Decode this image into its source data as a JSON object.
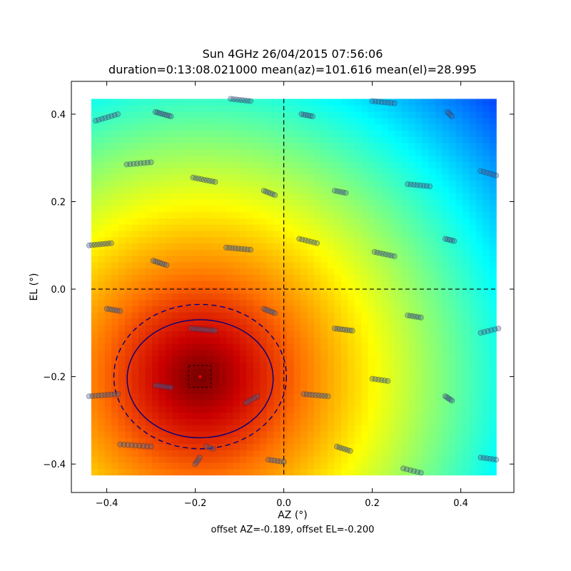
{
  "chart_data": {
    "type": "heatmap",
    "title": "Sun 4GHz 26/04/2015 07:56:06",
    "subtitle": "duration=0:13:08.021000 mean(az)=101.616 mean(el)=28.995",
    "xlabel": "AZ (°)",
    "ylabel": "EL (°)",
    "footer": "offset AZ=-0.189, offset EL=-0.200",
    "xlim": [
      -0.48,
      0.52
    ],
    "ylim": [
      -0.465,
      0.475
    ],
    "x_ticks": [
      -0.4,
      -0.2,
      0.0,
      0.2,
      0.4
    ],
    "y_ticks": [
      -0.4,
      -0.2,
      0.0,
      0.2,
      0.4
    ],
    "x_tick_labels": [
      "−0.4",
      "−0.2",
      "0.0",
      "0.2",
      "0.4"
    ],
    "y_tick_labels": [
      "−0.4",
      "−0.2",
      "0.0",
      "0.2",
      "0.4"
    ],
    "heatmap_extent": {
      "az": [
        -0.435,
        0.48
      ],
      "el": [
        -0.425,
        0.435
      ]
    },
    "colormap": "jet",
    "peak": {
      "az": -0.189,
      "el": -0.2
    },
    "beam_radius": 0.42,
    "crosshair": {
      "az": 0.0,
      "el": 0.0
    },
    "contour_solid": {
      "center": [
        -0.189,
        -0.205
      ],
      "radii": [
        0.165,
        0.135
      ]
    },
    "contour_dashed": {
      "center": [
        -0.189,
        -0.2
      ],
      "radii": [
        0.195,
        0.165
      ]
    },
    "fit_box": {
      "az": [
        -0.215,
        -0.165
      ],
      "el": [
        -0.225,
        -0.175
      ]
    },
    "grid": false,
    "samples": [
      {
        "az0": -0.425,
        "el0": 0.385,
        "az1": -0.375,
        "el1": 0.4,
        "n": 8
      },
      {
        "az0": -0.29,
        "el0": 0.405,
        "az1": -0.255,
        "el1": 0.395,
        "n": 9
      },
      {
        "az0": -0.12,
        "el0": 0.435,
        "az1": -0.075,
        "el1": 0.43,
        "n": 8
      },
      {
        "az0": 0.04,
        "el0": 0.4,
        "az1": 0.065,
        "el1": 0.395,
        "n": 6
      },
      {
        "az0": 0.2,
        "el0": 0.43,
        "az1": 0.25,
        "el1": 0.425,
        "n": 8
      },
      {
        "az0": 0.37,
        "el0": 0.405,
        "az1": 0.38,
        "el1": 0.395,
        "n": 4
      },
      {
        "az0": -0.355,
        "el0": 0.285,
        "az1": -0.3,
        "el1": 0.29,
        "n": 8
      },
      {
        "az0": -0.205,
        "el0": 0.255,
        "az1": -0.155,
        "el1": 0.245,
        "n": 9
      },
      {
        "az0": -0.045,
        "el0": 0.225,
        "az1": -0.02,
        "el1": 0.215,
        "n": 6
      },
      {
        "az0": 0.115,
        "el0": 0.225,
        "az1": 0.14,
        "el1": 0.22,
        "n": 5
      },
      {
        "az0": 0.28,
        "el0": 0.24,
        "az1": 0.33,
        "el1": 0.235,
        "n": 8
      },
      {
        "az0": 0.445,
        "el0": 0.27,
        "az1": 0.48,
        "el1": 0.26,
        "n": 6
      },
      {
        "az0": -0.44,
        "el0": 0.1,
        "az1": -0.39,
        "el1": 0.105,
        "n": 9
      },
      {
        "az0": -0.295,
        "el0": 0.065,
        "az1": -0.265,
        "el1": 0.055,
        "n": 7
      },
      {
        "az0": -0.13,
        "el0": 0.095,
        "az1": -0.075,
        "el1": 0.09,
        "n": 9
      },
      {
        "az0": 0.035,
        "el0": 0.115,
        "az1": 0.075,
        "el1": 0.105,
        "n": 7
      },
      {
        "az0": 0.205,
        "el0": 0.085,
        "az1": 0.25,
        "el1": 0.075,
        "n": 8
      },
      {
        "az0": 0.365,
        "el0": 0.115,
        "az1": 0.385,
        "el1": 0.11,
        "n": 5
      },
      {
        "az0": -0.4,
        "el0": -0.045,
        "az1": -0.37,
        "el1": -0.05,
        "n": 6
      },
      {
        "az0": -0.045,
        "el0": -0.045,
        "az1": -0.02,
        "el1": -0.055,
        "n": 6
      },
      {
        "az0": 0.28,
        "el0": -0.06,
        "az1": 0.31,
        "el1": -0.065,
        "n": 6
      },
      {
        "az0": 0.445,
        "el0": -0.1,
        "az1": 0.485,
        "el1": -0.09,
        "n": 6
      },
      {
        "az0": -0.21,
        "el0": -0.09,
        "az1": -0.155,
        "el1": -0.095,
        "n": 9
      },
      {
        "az0": 0.115,
        "el0": -0.09,
        "az1": 0.155,
        "el1": -0.095,
        "n": 8
      },
      {
        "az0": -0.44,
        "el0": -0.245,
        "az1": -0.375,
        "el1": -0.24,
        "n": 10
      },
      {
        "az0": -0.29,
        "el0": -0.22,
        "az1": -0.255,
        "el1": -0.225,
        "n": 6
      },
      {
        "az0": -0.085,
        "el0": -0.26,
        "az1": -0.06,
        "el1": -0.245,
        "n": 5
      },
      {
        "az0": 0.045,
        "el0": -0.24,
        "az1": 0.1,
        "el1": -0.245,
        "n": 9
      },
      {
        "az0": 0.2,
        "el0": -0.205,
        "az1": 0.235,
        "el1": -0.21,
        "n": 6
      },
      {
        "az0": 0.365,
        "el0": -0.245,
        "az1": 0.38,
        "el1": -0.255,
        "n": 5
      },
      {
        "az0": -0.37,
        "el0": -0.355,
        "az1": -0.3,
        "el1": -0.36,
        "n": 9
      },
      {
        "az0": -0.2,
        "el0": -0.4,
        "az1": -0.19,
        "el1": -0.385,
        "n": 4
      },
      {
        "az0": -0.175,
        "el0": -0.36,
        "az1": -0.16,
        "el1": -0.365,
        "n": 3
      },
      {
        "az0": -0.035,
        "el0": -0.39,
        "az1": 0.0,
        "el1": -0.395,
        "n": 6
      },
      {
        "az0": 0.12,
        "el0": -0.36,
        "az1": 0.15,
        "el1": -0.37,
        "n": 6
      },
      {
        "az0": 0.27,
        "el0": -0.41,
        "az1": 0.31,
        "el1": -0.42,
        "n": 6
      },
      {
        "az0": 0.445,
        "el0": -0.385,
        "az1": 0.48,
        "el1": -0.39,
        "n": 6
      }
    ]
  },
  "colors": {
    "crosshair": "#000000",
    "contour": "#000080",
    "peak_marker": "#ff0000",
    "sample_fill": "#4b6496"
  }
}
